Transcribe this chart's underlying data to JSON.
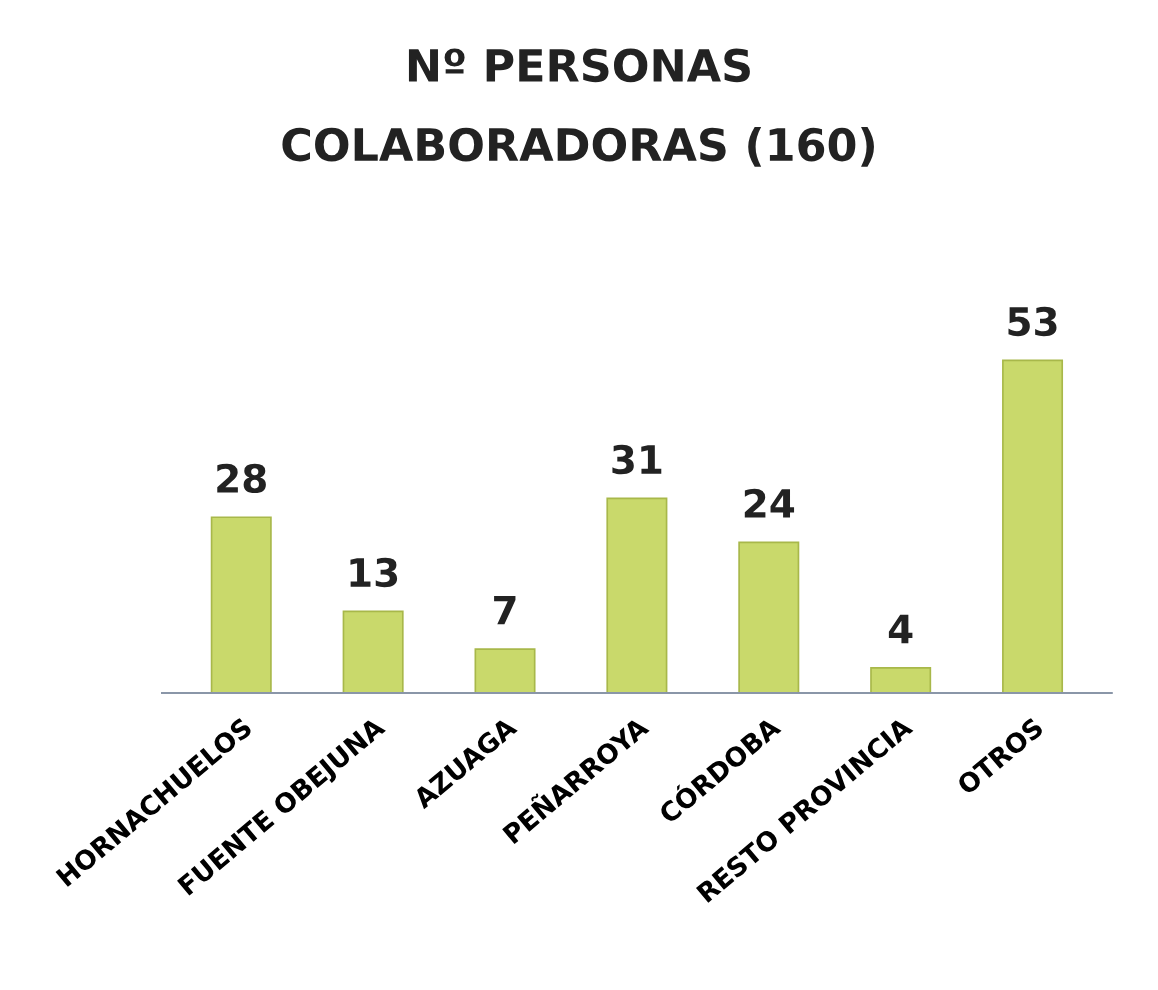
{
  "chart_data": {
    "type": "bar",
    "title": "Nº PERSONAS",
    "subtitle": "COLABORADORAS (160)",
    "categories": [
      "HORNACHUELOS",
      "FUENTE OBEJUNA",
      "AZUAGA",
      "PEÑARROYA",
      "CÓRDOBA",
      "RESTO PROVINCIA",
      "OTROS"
    ],
    "values": [
      28,
      13,
      7,
      31,
      24,
      4,
      53
    ],
    "color": "#c9d96b",
    "data_labels": true,
    "grid": false,
    "legend": false
  }
}
